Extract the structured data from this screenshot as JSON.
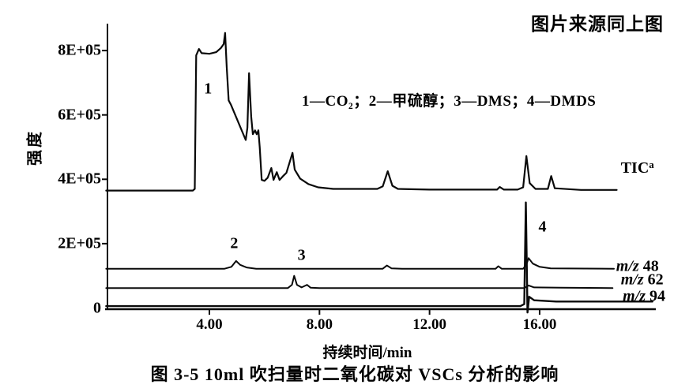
{
  "figure": {
    "source_note": "图片来源同上图",
    "caption": "图 3-5  10ml 吹扫量时二氧化碳对 VSCs 分析的影响"
  },
  "chart_data": {
    "type": "line",
    "title": "",
    "xlabel": "持续时间/min",
    "ylabel": "强度",
    "legend_text": "1—CO₂；2—甲硫醇；3—DMS；4—DMDS",
    "value_scale_note": "y values in units of 1E+05 intensity counts",
    "xlim": [
      0.25,
      20.2
    ],
    "ylim": [
      0,
      8.8
    ],
    "grid": false,
    "x_ticks": [
      {
        "t": 4,
        "label": "4.00"
      },
      {
        "t": 8,
        "label": "8.00"
      },
      {
        "t": 12,
        "label": "12.00"
      },
      {
        "t": 16,
        "label": "16.00"
      }
    ],
    "y_ticks": [
      {
        "v": 8,
        "label": "8E+05"
      },
      {
        "v": 6,
        "label": "6E+05"
      },
      {
        "v": 4,
        "label": "4E+05"
      },
      {
        "v": 2,
        "label": "2E+05"
      },
      {
        "v": 0,
        "label": "0"
      }
    ],
    "peak_annotations": [
      {
        "text": "1",
        "t": 3.95,
        "v": 6.8
      },
      {
        "text": "2",
        "t": 4.9,
        "v": 2.0
      },
      {
        "text": "3",
        "t": 7.35,
        "v": 1.62
      },
      {
        "text": "4",
        "t": 16.1,
        "v": 2.52
      }
    ],
    "series": [
      {
        "name": "TIC",
        "label": "TIC",
        "label_sup": "a",
        "label_t": 18.95,
        "label_v": 4.35,
        "width": 2.2,
        "points": [
          [
            0.25,
            3.65
          ],
          [
            3.4,
            3.65
          ],
          [
            3.47,
            3.7
          ],
          [
            3.52,
            7.85
          ],
          [
            3.62,
            8.05
          ],
          [
            3.72,
            7.92
          ],
          [
            4.0,
            7.9
          ],
          [
            4.25,
            7.95
          ],
          [
            4.42,
            8.08
          ],
          [
            4.52,
            8.2
          ],
          [
            4.57,
            8.55
          ],
          [
            4.63,
            7.5
          ],
          [
            4.7,
            6.45
          ],
          [
            4.78,
            6.32
          ],
          [
            5.32,
            5.22
          ],
          [
            5.38,
            5.6
          ],
          [
            5.44,
            7.3
          ],
          [
            5.52,
            5.95
          ],
          [
            5.58,
            5.4
          ],
          [
            5.66,
            5.52
          ],
          [
            5.72,
            5.4
          ],
          [
            5.78,
            5.52
          ],
          [
            5.83,
            5.0
          ],
          [
            5.9,
            3.98
          ],
          [
            6.0,
            3.95
          ],
          [
            6.12,
            4.05
          ],
          [
            6.25,
            4.35
          ],
          [
            6.33,
            3.98
          ],
          [
            6.45,
            4.22
          ],
          [
            6.55,
            3.98
          ],
          [
            6.68,
            4.1
          ],
          [
            6.8,
            4.2
          ],
          [
            7.02,
            4.82
          ],
          [
            7.1,
            4.3
          ],
          [
            7.3,
            4.02
          ],
          [
            7.6,
            3.85
          ],
          [
            7.95,
            3.75
          ],
          [
            8.5,
            3.7
          ],
          [
            10.1,
            3.7
          ],
          [
            10.3,
            3.78
          ],
          [
            10.48,
            4.25
          ],
          [
            10.65,
            3.8
          ],
          [
            10.85,
            3.7
          ],
          [
            12.0,
            3.68
          ],
          [
            14.45,
            3.68
          ],
          [
            14.55,
            3.76
          ],
          [
            14.7,
            3.68
          ],
          [
            15.2,
            3.68
          ],
          [
            15.4,
            3.75
          ],
          [
            15.52,
            4.72
          ],
          [
            15.64,
            3.88
          ],
          [
            15.85,
            3.7
          ],
          [
            16.3,
            3.7
          ],
          [
            16.42,
            4.1
          ],
          [
            16.55,
            3.72
          ],
          [
            17.5,
            3.67
          ],
          [
            18.8,
            3.67
          ]
        ]
      },
      {
        "name": "m/z 48",
        "label_prefix": "m/z",
        "label_value": "48",
        "label_t": 18.78,
        "label_v": 1.28,
        "width": 2,
        "points": [
          [
            0.25,
            1.22
          ],
          [
            4.55,
            1.22
          ],
          [
            4.8,
            1.28
          ],
          [
            4.97,
            1.46
          ],
          [
            5.12,
            1.34
          ],
          [
            5.35,
            1.26
          ],
          [
            5.7,
            1.22
          ],
          [
            10.3,
            1.22
          ],
          [
            10.45,
            1.32
          ],
          [
            10.62,
            1.23
          ],
          [
            11.0,
            1.22
          ],
          [
            14.4,
            1.22
          ],
          [
            14.5,
            1.3
          ],
          [
            14.62,
            1.22
          ],
          [
            15.4,
            1.22
          ],
          [
            15.52,
            1.35
          ],
          [
            15.6,
            1.55
          ],
          [
            15.75,
            1.38
          ],
          [
            16.0,
            1.28
          ],
          [
            16.4,
            1.23
          ],
          [
            18.7,
            1.22
          ]
        ]
      },
      {
        "name": "m/z 62",
        "label_prefix": "m/z",
        "label_value": "62",
        "label_t": 18.95,
        "label_v": 0.86,
        "width": 2,
        "points": [
          [
            0.25,
            0.62
          ],
          [
            6.85,
            0.62
          ],
          [
            7.0,
            0.72
          ],
          [
            7.08,
            1.0
          ],
          [
            7.18,
            0.72
          ],
          [
            7.35,
            0.64
          ],
          [
            7.55,
            0.72
          ],
          [
            7.68,
            0.63
          ],
          [
            8.0,
            0.62
          ],
          [
            15.45,
            0.62
          ],
          [
            15.6,
            0.7
          ],
          [
            15.8,
            0.64
          ],
          [
            16.8,
            0.63
          ],
          [
            18.65,
            0.62
          ]
        ]
      },
      {
        "name": "m/z 94",
        "label_prefix": "m/z",
        "label_value": "94",
        "label_t": 19.02,
        "label_v": 0.36,
        "width": 2.4,
        "points": [
          [
            0.25,
            0.06
          ],
          [
            15.3,
            0.06
          ],
          [
            15.44,
            0.12
          ],
          [
            15.5,
            3.28
          ],
          [
            15.56,
            -0.14
          ],
          [
            15.62,
            0.35
          ],
          [
            15.8,
            0.24
          ],
          [
            16.6,
            0.2
          ],
          [
            18.0,
            0.2
          ],
          [
            20.1,
            0.2
          ]
        ]
      }
    ]
  }
}
